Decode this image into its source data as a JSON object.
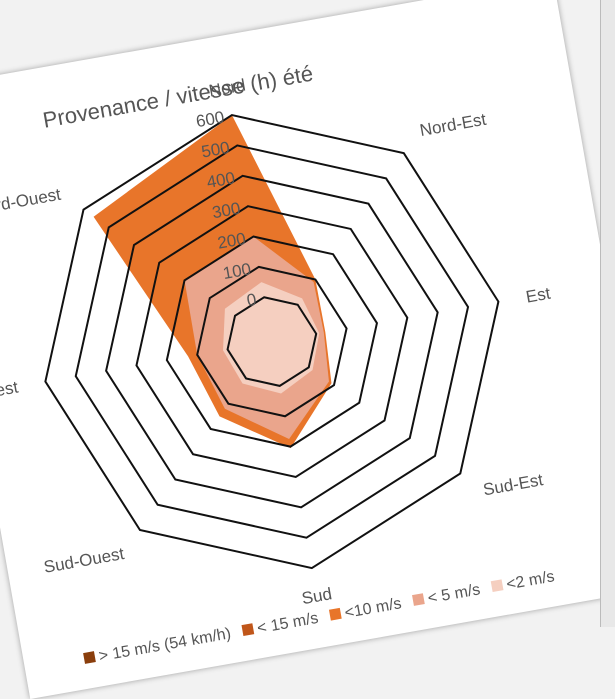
{
  "chart_data": {
    "type": "radar",
    "title": "Provenance / vitesse (h) été",
    "categories": [
      "Nord",
      "Nord-Est",
      "Est",
      "Sud-Est",
      "Sud",
      "Sud-Ouest",
      "Ouest",
      "Nord-Ouest"
    ],
    "rlim": [
      0,
      600
    ],
    "ticks": [
      "0",
      "100",
      "200",
      "300",
      "400",
      "500",
      "600"
    ],
    "series": [
      {
        "name": "> 15 m/s (54 km/h)",
        "color": "#8a3e0c",
        "values": [
          0,
          0,
          0,
          0,
          0,
          0,
          0,
          0
        ]
      },
      {
        "name": "< 15 m/s",
        "color": "#c0561a",
        "values": [
          0,
          0,
          0,
          0,
          0,
          0,
          0,
          0
        ]
      },
      {
        "name": "<10 m/s",
        "color": "#e8752a",
        "values": [
          600,
          100,
          30,
          90,
          205,
          150,
          130,
          560
        ]
      },
      {
        "name": "< 5 m/s",
        "color": "#eaa58c",
        "values": [
          200,
          90,
          25,
          80,
          175,
          120,
          100,
          200
        ]
      },
      {
        "name": "<2 m/s",
        "color": "#f5cfc0",
        "values": [
          50,
          25,
          10,
          15,
          25,
          20,
          15,
          40
        ]
      }
    ],
    "legend_position": "bottom"
  }
}
